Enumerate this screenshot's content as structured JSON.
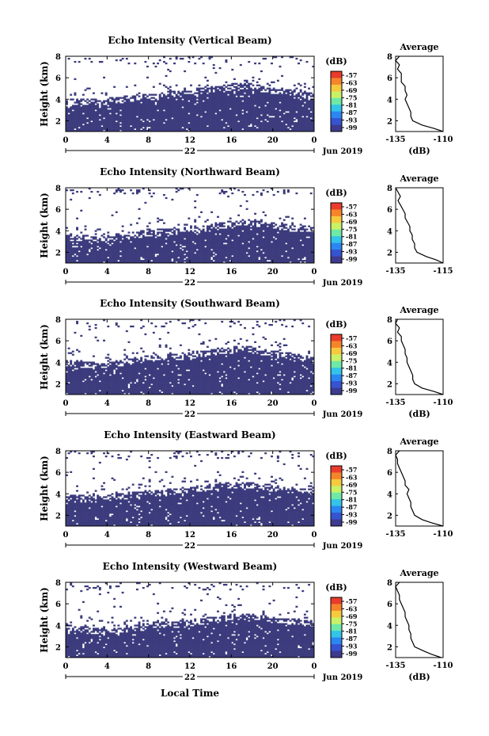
{
  "figure": {
    "bottom_xlabel": "Local Time",
    "date_label": "Jun 2019",
    "day_label": "22",
    "cb_unit": "(dB)",
    "cb_ticks": [
      "-57",
      "-63",
      "-69",
      "-75",
      "-81",
      "-87",
      "-93",
      "-99"
    ],
    "cb_colors": [
      "#ea3b2c",
      "#f6842a",
      "#f7c93d",
      "#c9f267",
      "#6ee9a7",
      "#32c4e9",
      "#2b86f3",
      "#3653d0",
      "#3e3a8f"
    ],
    "background_color": "#ffffff",
    "echo_color": "#3b3b7d"
  },
  "chart_data": [
    {
      "type": "heatmap",
      "title": "Echo Intensity (Vertical Beam)",
      "ylabel": "Height (km)",
      "x_ticks": [
        "0",
        "4",
        "8",
        "12",
        "16",
        "20",
        "0"
      ],
      "y_ticks": [
        "2",
        "4",
        "6",
        "8"
      ],
      "xlim": [
        0,
        24
      ],
      "ylim": [
        1,
        8
      ],
      "colorbar_unit": "(dB)",
      "boundary_km": [
        3.7,
        3.8,
        3.9,
        3.8,
        3.9,
        4.0,
        4.1,
        4.2,
        4.2,
        4.3,
        4.5,
        4.6,
        4.7,
        4.8,
        4.9,
        5.0,
        5.2,
        5.3,
        5.4,
        5.0,
        4.9,
        4.8,
        4.7,
        4.5,
        4.4
      ],
      "average": {
        "title": "Average",
        "xlabel": "(dB)",
        "x_ticks": [
          "-135",
          "-110"
        ],
        "xlim": [
          -135,
          -110
        ],
        "y_ticks": [
          "2",
          "4",
          "6",
          "8"
        ],
        "ylim": [
          1,
          8
        ],
        "height_km": [
          1.0,
          1.3,
          1.6,
          2.0,
          2.4,
          2.8,
          3.2,
          3.6,
          4.0,
          4.4,
          4.8,
          5.2,
          5.6,
          6.0,
          6.4,
          6.8,
          7.2,
          7.6,
          8.0
        ],
        "db": [
          -110,
          -115,
          -121,
          -126,
          -127,
          -127,
          -128,
          -129,
          -130,
          -129,
          -130,
          -130,
          -132,
          -132,
          -132,
          -134,
          -133,
          -135,
          -133
        ]
      }
    },
    {
      "type": "heatmap",
      "title": "Echo Intensity (Northward Beam)",
      "ylabel": "Height (km)",
      "x_ticks": [
        "0",
        "4",
        "8",
        "12",
        "16",
        "20",
        "0"
      ],
      "y_ticks": [
        "2",
        "4",
        "6",
        "8"
      ],
      "xlim": [
        0,
        24
      ],
      "ylim": [
        1,
        8
      ],
      "colorbar_unit": "(dB)",
      "boundary_km": [
        3.5,
        3.4,
        3.3,
        3.2,
        3.3,
        3.5,
        3.6,
        3.7,
        3.8,
        3.9,
        3.9,
        4.0,
        4.1,
        4.2,
        4.3,
        4.5,
        4.7,
        4.9,
        4.8,
        4.7,
        4.6,
        4.4,
        4.3,
        4.2,
        4.2
      ],
      "average": {
        "title": "Average",
        "xlabel": "",
        "x_ticks": [
          "-135",
          "-115"
        ],
        "xlim": [
          -135,
          -115
        ],
        "y_ticks": [
          "2",
          "4",
          "6",
          "8"
        ],
        "ylim": [
          1,
          8
        ],
        "height_km": [
          1.0,
          1.3,
          1.6,
          2.0,
          2.4,
          2.8,
          3.2,
          3.6,
          4.0,
          4.4,
          4.8,
          5.2,
          5.6,
          6.0,
          6.4,
          6.8,
          7.2,
          7.6,
          8.0
        ],
        "db": [
          -115,
          -118,
          -122,
          -126,
          -127,
          -127,
          -128,
          -128,
          -129,
          -129,
          -130,
          -131,
          -131,
          -132,
          -133,
          -134,
          -133,
          -134,
          -135
        ]
      }
    },
    {
      "type": "heatmap",
      "title": "Echo Intensity (Southward Beam)",
      "ylabel": "Height (km)",
      "x_ticks": [
        "0",
        "4",
        "8",
        "12",
        "16",
        "20",
        "0"
      ],
      "y_ticks": [
        "2",
        "4",
        "6",
        "8"
      ],
      "xlim": [
        0,
        24
      ],
      "ylim": [
        1,
        8
      ],
      "colorbar_unit": "(dB)",
      "boundary_km": [
        4.0,
        3.9,
        3.8,
        3.8,
        3.9,
        4.0,
        4.1,
        4.3,
        4.4,
        4.5,
        4.6,
        4.6,
        4.7,
        4.8,
        4.9,
        5.1,
        5.2,
        5.3,
        5.2,
        5.0,
        4.8,
        4.7,
        4.6,
        4.4,
        4.3
      ],
      "average": {
        "title": "Average",
        "xlabel": "(dB)",
        "x_ticks": [
          "-135",
          "-110"
        ],
        "xlim": [
          -135,
          -110
        ],
        "y_ticks": [
          "2",
          "4",
          "6",
          "8"
        ],
        "ylim": [
          1,
          8
        ],
        "height_km": [
          1.0,
          1.3,
          1.6,
          2.0,
          2.4,
          2.8,
          3.2,
          3.6,
          4.0,
          4.4,
          4.8,
          5.2,
          5.6,
          6.0,
          6.4,
          6.8,
          7.2,
          7.6,
          8.0
        ],
        "db": [
          -110,
          -115,
          -121,
          -125,
          -126,
          -126,
          -127,
          -128,
          -129,
          -129,
          -130,
          -130,
          -131,
          -132,
          -132,
          -134,
          -133,
          -135,
          -134
        ]
      }
    },
    {
      "type": "heatmap",
      "title": "Echo Intensity (Eastward Beam)",
      "ylabel": "Height (km)",
      "x_ticks": [
        "0",
        "4",
        "8",
        "12",
        "16",
        "20",
        "0"
      ],
      "y_ticks": [
        "2",
        "4",
        "6",
        "8"
      ],
      "xlim": [
        0,
        24
      ],
      "ylim": [
        1,
        8
      ],
      "colorbar_unit": "(dB)",
      "boundary_km": [
        3.7,
        3.6,
        3.6,
        3.6,
        3.7,
        3.8,
        3.9,
        4.0,
        4.1,
        4.1,
        4.2,
        4.3,
        4.4,
        4.5,
        4.7,
        4.8,
        4.9,
        4.9,
        4.8,
        4.7,
        4.6,
        4.5,
        4.4,
        4.3,
        4.2
      ],
      "average": {
        "title": "Average",
        "xlabel": "",
        "x_ticks": [
          "-135",
          "-110"
        ],
        "xlim": [
          -135,
          -110
        ],
        "y_ticks": [
          "2",
          "4",
          "6",
          "8"
        ],
        "ylim": [
          1,
          8
        ],
        "height_km": [
          1.0,
          1.3,
          1.6,
          2.0,
          2.4,
          2.8,
          3.2,
          3.6,
          4.0,
          4.4,
          4.8,
          5.2,
          5.6,
          6.0,
          6.4,
          6.8,
          7.2,
          7.6,
          8.0
        ],
        "db": [
          -110,
          -116,
          -121,
          -125,
          -126,
          -127,
          -127,
          -128,
          -129,
          -128,
          -130,
          -130,
          -131,
          -132,
          -133,
          -134,
          -134,
          -135,
          -133
        ]
      }
    },
    {
      "type": "heatmap",
      "title": "Echo Intensity (Westward Beam)",
      "ylabel": "Height (km)",
      "x_ticks": [
        "0",
        "4",
        "8",
        "12",
        "16",
        "20",
        "0"
      ],
      "y_ticks": [
        "2",
        "4",
        "6",
        "8"
      ],
      "xlim": [
        0,
        24
      ],
      "ylim": [
        1,
        8
      ],
      "colorbar_unit": "(dB)",
      "boundary_km": [
        3.9,
        3.8,
        3.6,
        3.5,
        3.5,
        3.6,
        3.8,
        3.9,
        4.0,
        4.1,
        4.1,
        4.2,
        4.3,
        4.4,
        4.5,
        4.6,
        4.8,
        4.8,
        4.9,
        4.8,
        4.6,
        4.5,
        4.4,
        4.3,
        4.2
      ],
      "average": {
        "title": "Average",
        "xlabel": "(dB)",
        "x_ticks": [
          "-135",
          "-110"
        ],
        "xlim": [
          -135,
          -110
        ],
        "y_ticks": [
          "2",
          "4",
          "6",
          "8"
        ],
        "ylim": [
          1,
          8
        ],
        "height_km": [
          1.0,
          1.3,
          1.6,
          2.0,
          2.4,
          2.8,
          3.2,
          3.6,
          4.0,
          4.4,
          4.8,
          5.2,
          5.6,
          6.0,
          6.4,
          6.8,
          7.2,
          7.6,
          8.0
        ],
        "db": [
          -111,
          -116,
          -120,
          -125,
          -126,
          -127,
          -127,
          -128,
          -128,
          -129,
          -130,
          -130,
          -131,
          -132,
          -133,
          -133,
          -134,
          -135,
          -133
        ]
      }
    }
  ]
}
